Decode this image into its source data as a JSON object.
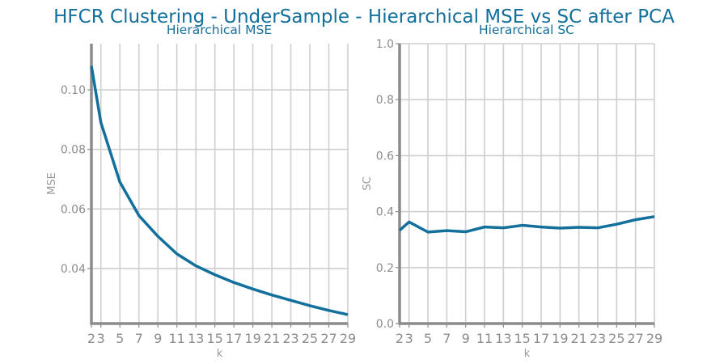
{
  "figure": {
    "title": "HFCR Clustering - UnderSample - Hierarchical MSE vs SC after PCA",
    "line_color": "#136f9c",
    "title_color": "#136f9c"
  },
  "chart_data": [
    {
      "type": "line",
      "title": "Hierarchical MSE",
      "xlabel": "k",
      "ylabel": "MSE",
      "x": [
        2,
        3,
        5,
        7,
        9,
        11,
        13,
        15,
        17,
        19,
        21,
        23,
        25,
        27,
        29
      ],
      "series": [
        {
          "values": [
            0.108,
            0.089,
            0.069,
            0.0578,
            0.0508,
            0.0449,
            0.0409,
            0.0379,
            0.0353,
            0.0331,
            0.0311,
            0.0293,
            0.0275,
            0.0259,
            0.0245
          ]
        }
      ],
      "xlim": [
        2,
        29
      ],
      "ylim": [
        0.0215,
        0.1155
      ],
      "xticks": [
        "2",
        "3",
        "5",
        "7",
        "9",
        "11",
        "13",
        "15",
        "17",
        "19",
        "21",
        "23",
        "25",
        "27",
        "29"
      ],
      "yticks": [
        "0.04",
        "0.06",
        "0.08",
        "0.10"
      ],
      "grid": true
    },
    {
      "type": "line",
      "title": "Hierarchical SC",
      "xlabel": "k",
      "ylabel": "SC",
      "x": [
        2,
        3,
        5,
        7,
        9,
        11,
        13,
        15,
        17,
        19,
        21,
        23,
        25,
        27,
        29
      ],
      "series": [
        {
          "values": [
            0.333,
            0.363,
            0.327,
            0.332,
            0.328,
            0.345,
            0.342,
            0.351,
            0.345,
            0.341,
            0.344,
            0.342,
            0.355,
            0.371,
            0.382
          ]
        }
      ],
      "xlim": [
        2,
        29
      ],
      "ylim": [
        0.0,
        1.0
      ],
      "xticks": [
        "2",
        "3",
        "5",
        "7",
        "9",
        "11",
        "13",
        "15",
        "17",
        "19",
        "21",
        "23",
        "25",
        "27",
        "29"
      ],
      "yticks": [
        "0.0",
        "0.2",
        "0.4",
        "0.6",
        "0.8",
        "1.0"
      ],
      "grid": true
    }
  ]
}
